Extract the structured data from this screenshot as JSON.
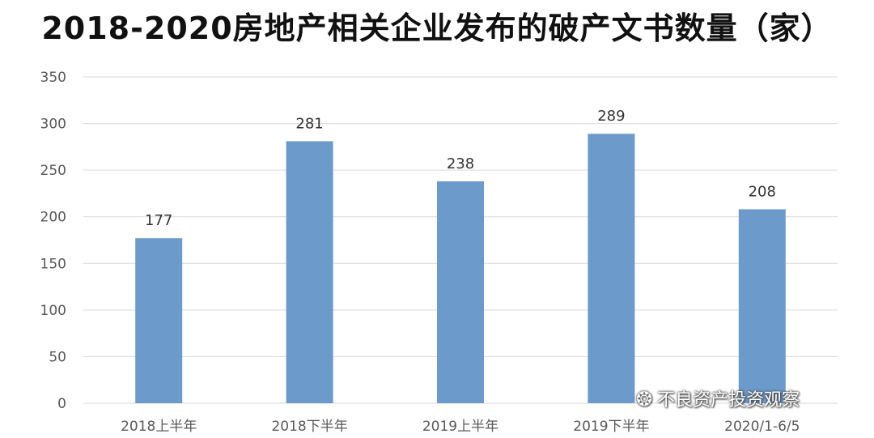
{
  "chart_data": {
    "type": "bar",
    "title": "2018-2020房地产相关企业发布的破产文书数量（家）",
    "categories": [
      "2018上半年",
      "2018下半年",
      "2019上半年",
      "2019下半年",
      "2020/1-6/5"
    ],
    "values": [
      177,
      281,
      238,
      289,
      208
    ],
    "ylim": [
      0,
      350
    ],
    "yticks": [
      0,
      50,
      100,
      150,
      200,
      250,
      300,
      350
    ],
    "grid": true,
    "bar_color": "#6b9acb",
    "data_labels": true
  },
  "watermark": {
    "text": "不良资产投资观察",
    "icon": "wechat-icon"
  }
}
